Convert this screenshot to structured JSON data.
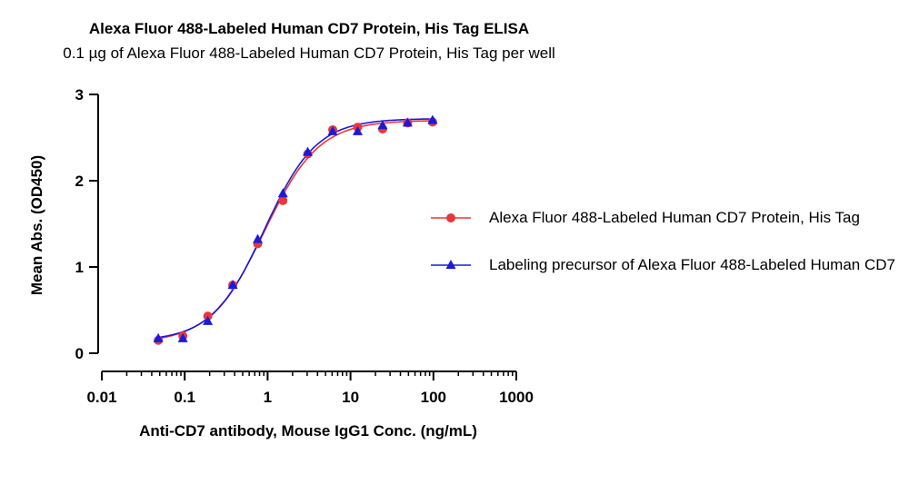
{
  "chart_data": {
    "type": "scatter",
    "title": "Alexa Fluor 488-Labeled Human CD7 Protein, His Tag ELISA",
    "subtitle": "0.1 µg of Alexa Fluor 488-Labeled Human CD7 Protein, His Tag per well",
    "xlabel": "Anti-CD7 antibody, Mouse IgG1 Conc. (ng/mL)",
    "ylabel": "Mean Abs. (OD450)",
    "xscale": "log",
    "xlim": [
      0.01,
      1000
    ],
    "ylim": [
      0,
      3
    ],
    "x_ticks": [
      "0.01",
      "0.1",
      "1",
      "10",
      "100",
      "1000"
    ],
    "y_ticks": [
      "0",
      "1",
      "2",
      "3"
    ],
    "grid": false,
    "legend_position": "right",
    "series": [
      {
        "name": "Alexa Fluor 488-Labeled Human CD7 Protein, His Tag",
        "color": "#e8373a",
        "marker": "circle",
        "x": [
          0.048,
          0.095,
          0.19,
          0.38,
          0.76,
          1.53,
          3.05,
          6.1,
          12.2,
          24.4,
          48.8,
          97.7
        ],
        "y": [
          0.15,
          0.2,
          0.43,
          0.79,
          1.27,
          1.77,
          2.31,
          2.59,
          2.62,
          2.6,
          2.67,
          2.68
        ]
      },
      {
        "name": "Labeling precursor of Alexa Fluor 488-Labeled Human CD7",
        "color": "#1a1adb",
        "marker": "triangle",
        "x": [
          0.048,
          0.095,
          0.19,
          0.38,
          0.76,
          1.53,
          3.05,
          6.1,
          12.2,
          24.4,
          48.8,
          97.7
        ],
        "y": [
          0.17,
          0.17,
          0.37,
          0.79,
          1.32,
          1.85,
          2.33,
          2.57,
          2.57,
          2.64,
          2.67,
          2.7
        ]
      }
    ]
  }
}
